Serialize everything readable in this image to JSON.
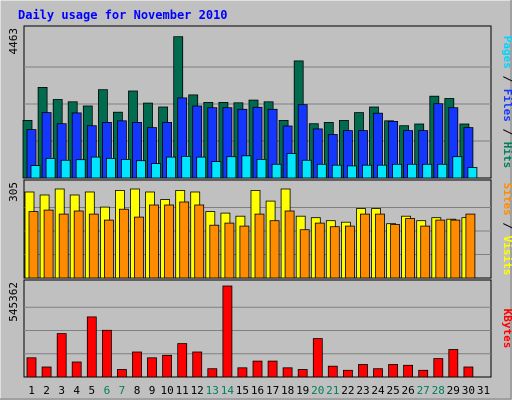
{
  "chart_data": {
    "type": "bar",
    "title": "Daily usage for November 2010",
    "categories": [
      "1",
      "2",
      "3",
      "4",
      "5",
      "6",
      "7",
      "8",
      "9",
      "10",
      "11",
      "12",
      "13",
      "14",
      "15",
      "16",
      "17",
      "18",
      "19",
      "20",
      "21",
      "22",
      "23",
      "24",
      "25",
      "26",
      "27",
      "28",
      "29",
      "30",
      "31"
    ],
    "weekend_days": [
      "6",
      "7",
      "13",
      "14",
      "20",
      "21",
      "27",
      "28"
    ],
    "panels": [
      {
        "id": "top",
        "max_label": "4463",
        "ymax": 4463,
        "side_labels": [
          "Pages",
          "Files",
          "Hits"
        ],
        "series": [
          {
            "name": "Hits",
            "color": "#006b4f",
            "values": [
              1760,
              2770,
              2400,
              2330,
              2200,
              2700,
              2010,
              2660,
              2290,
              2170,
              4320,
              2540,
              2310,
              2310,
              2300,
              2380,
              2330,
              1760,
              3580,
              1660,
              1700,
              1760,
              2000,
              2170,
              1750,
              1600,
              1650,
              2500,
              2430,
              1650,
              null
            ]
          },
          {
            "name": "Files",
            "color": "#1437ff",
            "values": [
              1480,
              2000,
              1660,
              1990,
              1600,
              1700,
              1750,
              1700,
              1540,
              1700,
              2450,
              2200,
              2150,
              2150,
              2100,
              2160,
              2100,
              1590,
              2240,
              1500,
              1330,
              1450,
              1450,
              1980,
              1730,
              1450,
              1450,
              2270,
              2150,
              1540,
              null
            ]
          },
          {
            "name": "Pages",
            "color": "#00e6ff",
            "values": [
              380,
              600,
              540,
              560,
              640,
              600,
              570,
              530,
              440,
              640,
              660,
              640,
              500,
              650,
              680,
              570,
              420,
              750,
              540,
              420,
              390,
              370,
              390,
              390,
              420,
              420,
              420,
              420,
              650,
              320,
              null
            ]
          }
        ]
      },
      {
        "id": "middle",
        "max_label": "305",
        "ymax": 305,
        "side_labels": [
          "Sites",
          "Visits"
        ],
        "series": [
          {
            "name": "Visits",
            "color": "#ffff00",
            "values": [
              285,
              275,
              295,
              275,
              285,
              235,
              290,
              295,
              285,
              260,
              290,
              285,
              220,
              215,
              205,
              290,
              255,
              295,
              205,
              200,
              190,
              185,
              230,
              230,
              180,
              205,
              190,
              200,
              195,
              200,
              null
            ]
          },
          {
            "name": "Sites",
            "color": "#ff8c00",
            "values": [
              220,
              225,
              212,
              222,
              212,
              192,
              228,
              202,
              242,
              242,
              252,
              242,
              175,
              182,
              172,
              212,
              190,
              222,
              160,
              182,
              170,
              172,
              212,
              212,
              177,
              197,
              172,
              192,
              192,
              212,
              null
            ]
          }
        ]
      },
      {
        "id": "bottom",
        "max_label": "545362",
        "ymax": 545362,
        "side_labels": [
          "KBytes"
        ],
        "series": [
          {
            "name": "KBytes",
            "color": "#ff0000",
            "values": [
              115000,
              60000,
              260000,
              90000,
              360000,
              280000,
              45000,
              150000,
              115000,
              130000,
              200000,
              150000,
              50000,
              545362,
              55000,
              95000,
              95000,
              55000,
              45000,
              230000,
              65000,
              40000,
              75000,
              50000,
              75000,
              70000,
              40000,
              110000,
              165000,
              60000,
              null
            ]
          }
        ]
      }
    ]
  },
  "colors": {
    "background": "#ffffff",
    "frame": "#c0c0c0",
    "plot_area": "#c0c0c0",
    "title": "#0000ff",
    "weekday_label": "#000000",
    "weekend_label": "#00805e",
    "label_pages": "#00d4ff",
    "label_files": "#1437ff",
    "label_hits": "#00805e",
    "label_sites": "#ff8c00",
    "label_visits": "#ffff00",
    "label_kbytes": "#ff0000",
    "separator": "#000000"
  }
}
